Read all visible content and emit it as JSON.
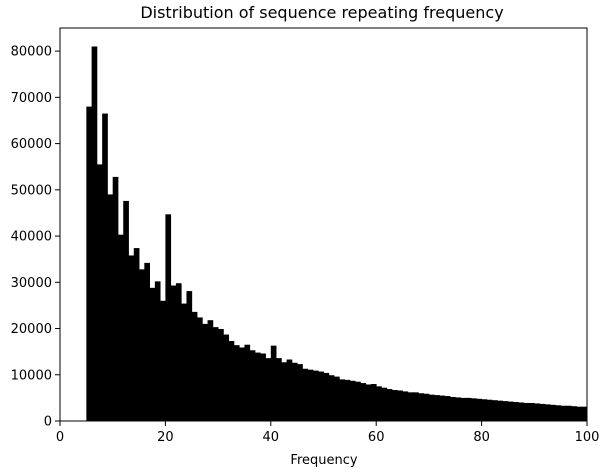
{
  "chart_data": {
    "type": "bar",
    "title": "Distribution of sequence repeating frequency",
    "xlabel": "Frequency",
    "ylabel": "",
    "xlim": [
      0,
      100
    ],
    "ylim": [
      0,
      85000
    ],
    "xticks": [
      0,
      20,
      40,
      60,
      80,
      100
    ],
    "yticks": [
      0,
      10000,
      20000,
      30000,
      40000,
      50000,
      60000,
      70000,
      80000
    ],
    "grid": false,
    "bar_color": "#000000",
    "bins": {
      "start": 5,
      "width": 1,
      "values": [
        68000,
        81000,
        55500,
        66500,
        49000,
        52800,
        40300,
        47600,
        35800,
        37400,
        32800,
        34200,
        28800,
        30200,
        26000,
        44700,
        29300,
        29800,
        25400,
        28100,
        23600,
        22400,
        21000,
        21800,
        20300,
        19900,
        18700,
        17300,
        16400,
        15900,
        16500,
        15300,
        14800,
        14600,
        13600,
        16300,
        13600,
        12700,
        13300,
        12600,
        12300,
        11300,
        11100,
        10900,
        10700,
        10400,
        9900,
        9600,
        9000,
        8900,
        8700,
        8500,
        8200,
        7900,
        8000,
        7500,
        7200,
        6900,
        6700,
        6600,
        6400,
        6200,
        6200,
        6000,
        5900,
        5700,
        5600,
        5500,
        5400,
        5200,
        5100,
        5000,
        5000,
        4900,
        4800,
        4700,
        4600,
        4500,
        4400,
        4300,
        4200,
        4100,
        4000,
        3900,
        3900,
        3800,
        3700,
        3600,
        3500,
        3400,
        3300,
        3300,
        3200,
        3100,
        3100
      ]
    }
  }
}
